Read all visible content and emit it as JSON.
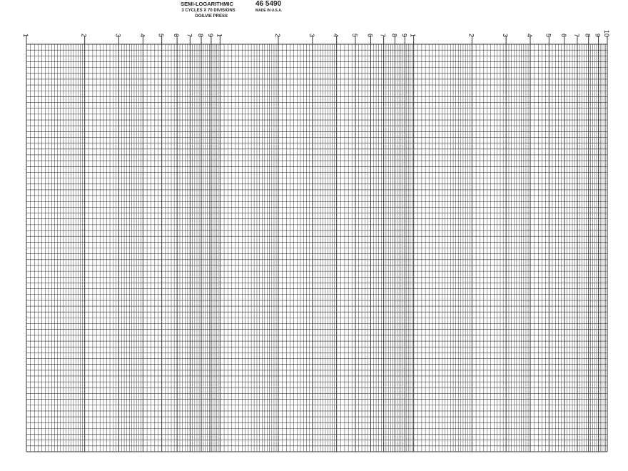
{
  "header": {
    "title": "SEMI-LOGARITHMIC",
    "subtitle": "3 CYCLES X 70 DIVISIONS",
    "publisher": "OGILVIE PRESS",
    "number": "46 5490",
    "origin": "MADE IN U.S.A."
  },
  "scale": {
    "cycles": [
      {
        "labels": [
          "1",
          "2",
          "3",
          "4",
          "5",
          "6",
          "7",
          "8",
          "9"
        ]
      },
      {
        "labels": [
          "1",
          "2",
          "3",
          "4",
          "5",
          "6",
          "7",
          "8",
          "9"
        ]
      },
      {
        "labels": [
          "1",
          "2",
          "3",
          "4",
          "5",
          "6",
          "7",
          "8",
          "9",
          "10"
        ]
      }
    ]
  }
}
